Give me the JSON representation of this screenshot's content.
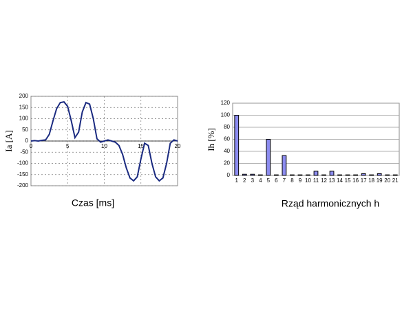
{
  "chart_data": [
    {
      "type": "line",
      "x_label": "Czas [ms]",
      "y_label": "Ia [A]",
      "x": [
        0,
        0.5,
        1,
        1.5,
        2,
        2.5,
        3,
        3.5,
        4,
        4.5,
        5,
        5.5,
        6,
        6.5,
        7,
        7.5,
        8,
        8.5,
        9,
        9.5,
        10,
        10.5,
        11,
        11.5,
        12,
        12.5,
        13,
        13.5,
        14,
        14.5,
        15,
        15.5,
        16,
        16.5,
        17,
        17.5,
        18,
        18.5,
        19,
        19.5,
        20
      ],
      "series": [
        {
          "color": "#1a2a80",
          "values": [
            0,
            2,
            0,
            3,
            5,
            30,
            90,
            145,
            172,
            175,
            155,
            90,
            15,
            40,
            130,
            172,
            165,
            100,
            10,
            -5,
            0,
            5,
            0,
            -5,
            -20,
            -60,
            -120,
            -165,
            -178,
            -160,
            -80,
            -10,
            -20,
            -100,
            -160,
            -178,
            -165,
            -100,
            -10,
            5,
            0
          ]
        }
      ],
      "xlim": [
        0,
        20
      ],
      "xticks": [
        0,
        5,
        10,
        15,
        20
      ],
      "ylim": [
        -200,
        200
      ],
      "yticks": [
        -200,
        -150,
        -100,
        -50,
        0,
        50,
        100,
        150,
        200
      ],
      "grid": true
    },
    {
      "type": "bar",
      "x_label": "Rząd harmonicznych h",
      "y_label": "Ih [%]",
      "categories": [
        "1",
        "2",
        "3",
        "4",
        "5",
        "6",
        "7",
        "8",
        "9",
        "10",
        "11",
        "12",
        "13",
        "14",
        "15",
        "16",
        "17",
        "18",
        "19",
        "20",
        "21"
      ],
      "values": [
        100,
        2,
        2,
        1,
        60,
        1,
        33,
        1,
        1,
        1,
        7,
        1,
        7,
        1,
        1,
        1,
        3,
        1,
        3,
        1,
        1
      ],
      "color": "#8c8cf0",
      "ylim": [
        0,
        120
      ],
      "yticks": [
        0,
        20,
        40,
        60,
        80,
        100,
        120
      ],
      "grid": true
    }
  ]
}
